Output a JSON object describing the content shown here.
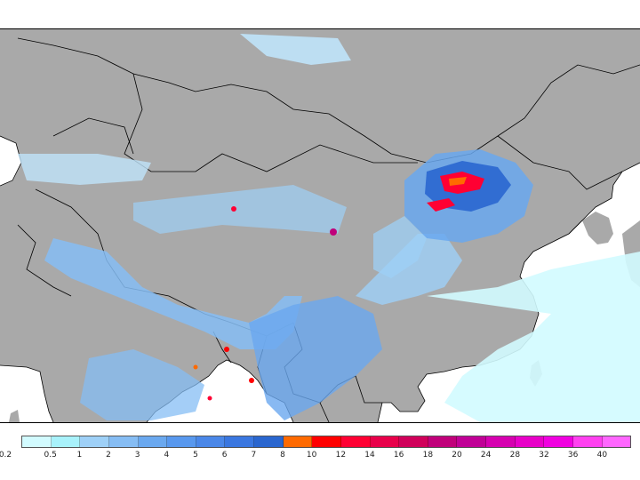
{
  "map": {
    "land_color": "#a9a9a9",
    "sea_color": "#ffffff",
    "border_color": "#000000"
  },
  "legend": {
    "labels": [
      "0.2",
      "0.5",
      "1",
      "2",
      "3",
      "4",
      "5",
      "6",
      "7",
      "8",
      "10",
      "12",
      "14",
      "16",
      "18",
      "20",
      "24",
      "28",
      "32",
      "36",
      "40"
    ],
    "colors": [
      "#d2fbff",
      "#a8f2fb",
      "#9ed0f7",
      "#86bdf4",
      "#6aa8ef",
      "#5898ee",
      "#4a87e8",
      "#3a77e0",
      "#2a66cf",
      "#ff6a00",
      "#ff0000",
      "#ff0033",
      "#e8004a",
      "#d0005a",
      "#c0007a",
      "#c00096",
      "#d600b0",
      "#e800c8",
      "#f000e0",
      "#ff40f0",
      "#ff66ff"
    ]
  }
}
